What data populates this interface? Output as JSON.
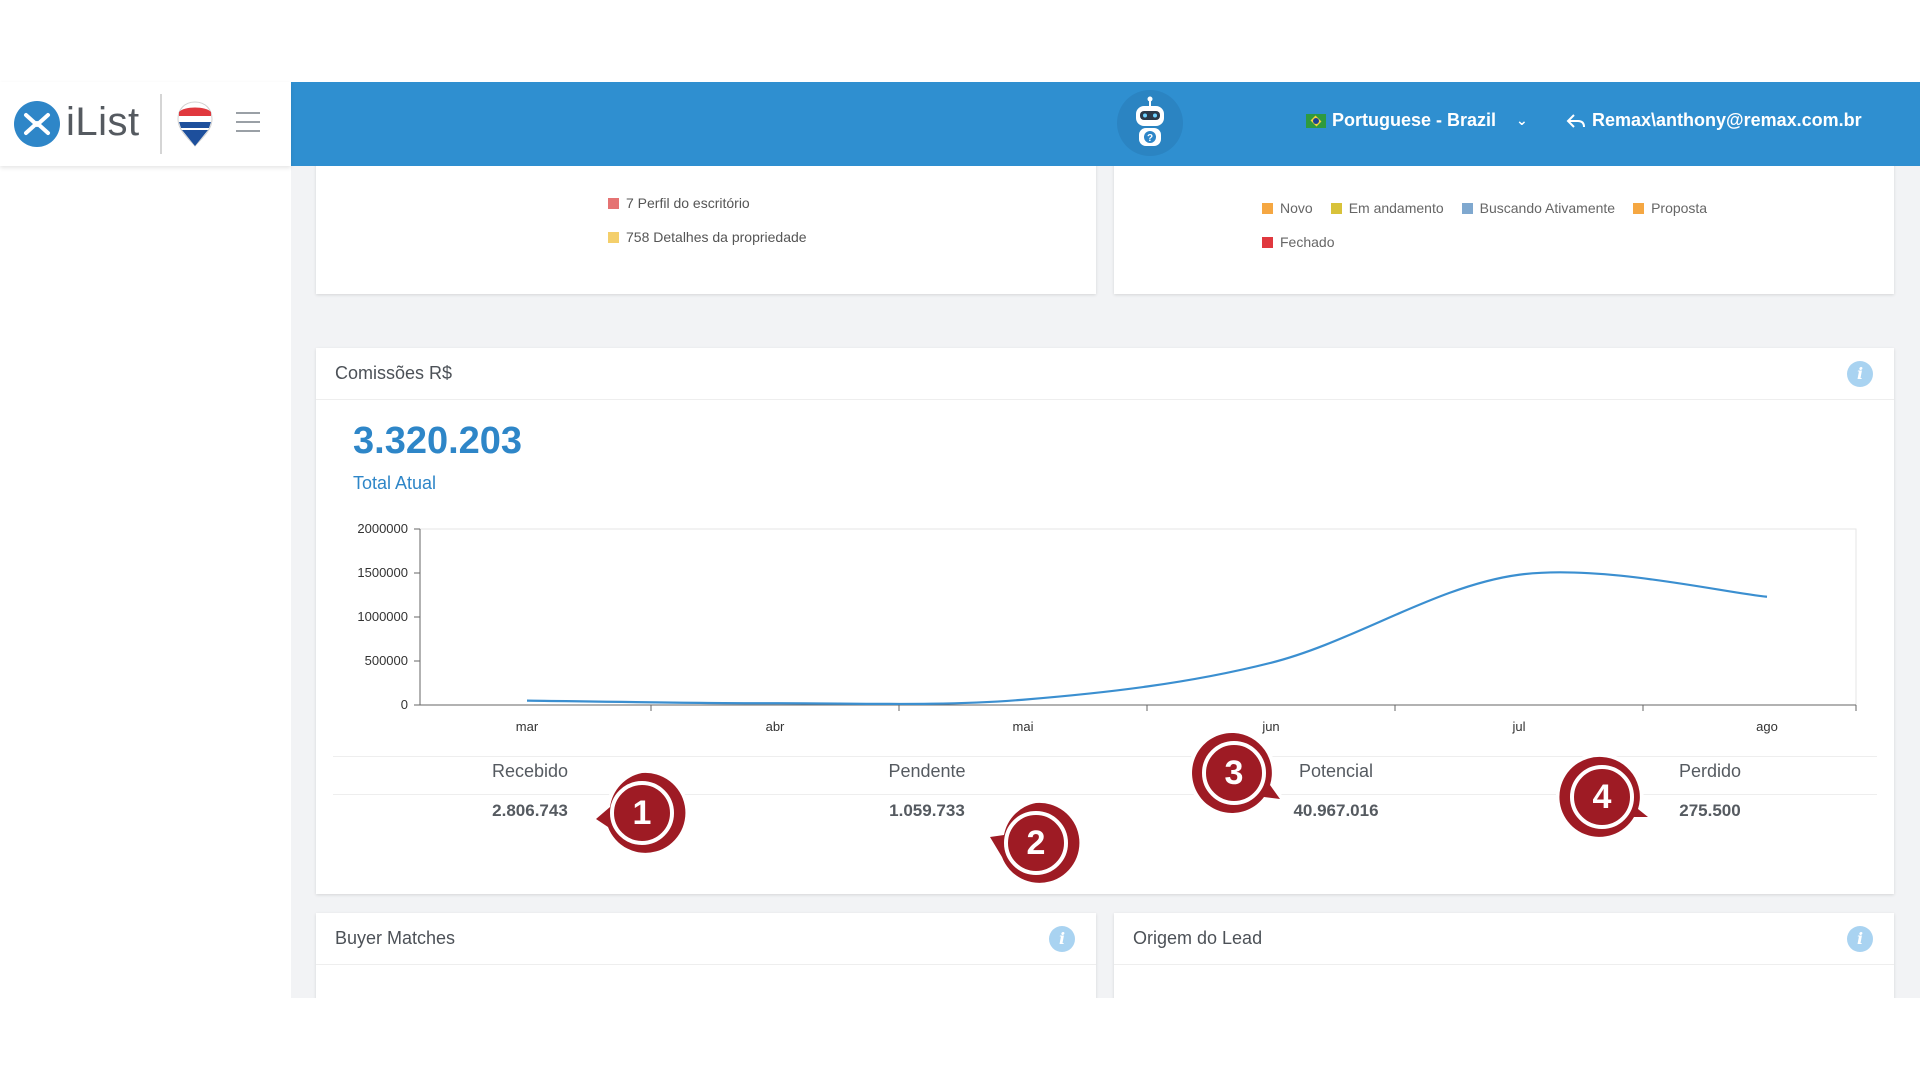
{
  "brand": {
    "logo_text": "iList"
  },
  "header": {
    "language": "Portuguese - Brazil",
    "user": "Remax\\anthony@remax.com.br"
  },
  "top_left_card": {
    "legend": [
      {
        "label": "7 Perfil do escritório",
        "color": "#e57373"
      },
      {
        "label": "758 Detalhes da propriedade",
        "color": "#f4cf6b"
      }
    ]
  },
  "top_right_card": {
    "legend": [
      {
        "label": "Novo",
        "color": "#f5a742"
      },
      {
        "label": "Em andamento",
        "color": "#d8c23a"
      },
      {
        "label": "Buscando Ativamente",
        "color": "#7fa8cf"
      },
      {
        "label": "Proposta",
        "color": "#f5a742"
      },
      {
        "label": "Fechado",
        "color": "#e0383e"
      }
    ]
  },
  "commissions": {
    "title": "Comissões  R$",
    "total_value": "3.320.203",
    "total_label": "Total Atual",
    "stats": [
      {
        "label": "Recebido",
        "value": "2.806.743"
      },
      {
        "label": "Pendente",
        "value": "1.059.733"
      },
      {
        "label": "Potencial",
        "value": "40.967.016"
      },
      {
        "label": "Perdido",
        "value": "275.500"
      }
    ]
  },
  "chart_data": {
    "type": "line",
    "title": "",
    "xlabel": "",
    "ylabel": "",
    "categories": [
      "mar",
      "abr",
      "mai",
      "jun",
      "jul",
      "ago"
    ],
    "y_ticks": [
      "0",
      "500000",
      "1000000",
      "1500000",
      "2000000"
    ],
    "ylim": [
      0,
      2000000
    ],
    "series": [
      {
        "values": [
          50000,
          20000,
          60000,
          480000,
          1480000,
          1230000
        ],
        "color": "#3b8fd0"
      }
    ],
    "grid": false,
    "legend": "none"
  },
  "buyer_matches": {
    "title": "Buyer Matches"
  },
  "lead_origin": {
    "title": "Origem do Lead"
  },
  "badges": [
    "1",
    "2",
    "3",
    "4"
  ]
}
